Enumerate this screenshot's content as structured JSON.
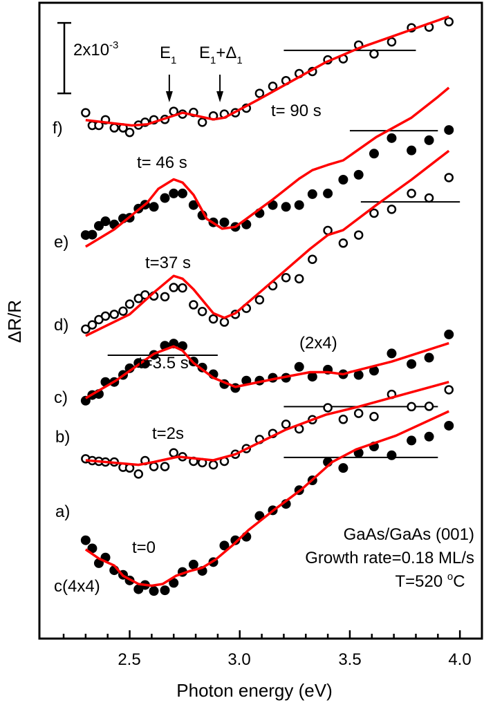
{
  "chart_data": {
    "type": "scatter",
    "xlabel": "Photon energy (eV)",
    "ylabel": "ΔR/R",
    "xlim": [
      2.09,
      4.1
    ],
    "ylim": [
      0,
      18.04
    ],
    "y_units_note": "",
    "xticks": [
      "2.5",
      "3.0",
      "3.5",
      "4.0"
    ],
    "xtick_values": [
      2.5,
      3.0,
      3.5,
      4.0
    ],
    "minor_tick_step": 0.1,
    "grid": false,
    "scale_bar": {
      "label_base": "2x10",
      "label_exp": "-3",
      "value": 2,
      "top": 17.47
    },
    "colors": {
      "fit": "#ff0000",
      "data": "#000000",
      "reference": "#000000"
    },
    "annotations": {
      "e1": {
        "base": "E",
        "sub": "1",
        "energy": 2.68
      },
      "e1_delta1": {
        "base1": "E",
        "sub1": "1",
        "plus": "+Δ",
        "sub2": "1",
        "energy": 2.91
      },
      "surface_2x4": "(2x4)",
      "surface_c4x4": "c(4x4)",
      "sample": "GaAs/GaAs (001)",
      "growth_rate": "Growth rate=0.18 ML/s",
      "temperature_base": "T=520 ",
      "temperature_deg": "o",
      "temperature_unit": "C"
    },
    "energies": [
      2.3,
      2.33,
      2.36,
      2.39,
      2.43,
      2.47,
      2.5,
      2.54,
      2.57,
      2.61,
      2.66,
      2.7,
      2.74,
      2.79,
      2.83,
      2.88,
      2.93,
      2.98,
      3.03,
      3.09,
      3.15,
      3.21,
      3.27,
      3.33,
      3.4,
      3.47,
      3.54,
      3.61,
      3.69,
      3.78,
      3.86,
      3.95
    ],
    "series": [
      {
        "label": "a)",
        "time": "t=0",
        "marker": "filled",
        "values": [
          2.79,
          2.56,
          2.14,
          2.3,
          1.94,
          1.81,
          1.65,
          1.4,
          1.52,
          1.35,
          1.37,
          1.58,
          1.89,
          2.1,
          1.92,
          2.17,
          2.64,
          2.79,
          2.89,
          3.48,
          3.64,
          3.82,
          4.21,
          4.49,
          5.01,
          4.84,
          5.27,
          5.45,
          5.2,
          5.62,
          5.73,
          6.04
        ],
        "fit": {
          "x": [
            2.3,
            2.36,
            2.43,
            2.47,
            2.54,
            2.6,
            2.65,
            2.71,
            2.77,
            2.83,
            2.89,
            2.97,
            3.04,
            3.16,
            3.28,
            3.42,
            3.53,
            3.71,
            3.95
          ],
          "y": [
            2.53,
            2.27,
            2.07,
            1.78,
            1.55,
            1.5,
            1.55,
            1.78,
            1.91,
            2.01,
            2.24,
            2.66,
            3.08,
            3.67,
            4.23,
            5.01,
            5.37,
            5.76,
            6.45
          ]
        },
        "reference": {
          "x": [
            3.2,
            3.9
          ],
          "y": 5.14
        }
      },
      {
        "label": "b)",
        "time": "t=2s",
        "marker": "open",
        "values": [
          5.1,
          5.05,
          5.03,
          5.01,
          5.01,
          4.86,
          4.84,
          4.67,
          5.05,
          4.88,
          4.88,
          5.27,
          5.16,
          5.03,
          4.99,
          4.93,
          5.03,
          5.23,
          5.39,
          5.65,
          5.82,
          6.08,
          5.95,
          6.21,
          6.55,
          6.22,
          6.39,
          6.3,
          6.93,
          6.58,
          6.59,
          7.06
        ],
        "fit": {
          "x": [
            2.3,
            2.54,
            2.61,
            2.72,
            2.88,
            2.98,
            3.21,
            3.39,
            3.54,
            3.95
          ],
          "y": [
            5.06,
            4.93,
            5.01,
            5.16,
            5.06,
            5.23,
            5.93,
            6.35,
            6.58,
            7.28
          ]
        },
        "reference": {
          "x": [
            3.2,
            3.9
          ],
          "y": 6.58
        }
      },
      {
        "label": "c)",
        "time": "t=3.5 s",
        "marker": "filled",
        "values": [
          6.75,
          6.91,
          6.94,
          7.28,
          7.28,
          7.48,
          7.67,
          7.82,
          7.8,
          8.05,
          8.31,
          8.37,
          8.3,
          7.86,
          7.69,
          7.5,
          7.22,
          7.11,
          7.32,
          7.32,
          7.4,
          7.4,
          7.71,
          7.43,
          7.63,
          7.5,
          7.48,
          7.6,
          8.09,
          7.79,
          7.97,
          8.63
        ],
        "fit": {
          "x": [
            2.3,
            2.44,
            2.61,
            2.7,
            2.74,
            2.79,
            2.88,
            2.98,
            3.16,
            3.32,
            3.4,
            3.47,
            3.5,
            3.69,
            3.95
          ],
          "y": [
            6.82,
            7.33,
            8.08,
            8.29,
            8.17,
            7.82,
            7.4,
            7.14,
            7.37,
            7.56,
            7.56,
            7.5,
            7.56,
            7.86,
            8.38
          ]
        },
        "reference": {
          "x": [
            2.4,
            2.9
          ],
          "y": 8.04
        }
      },
      {
        "label": "d)",
        "time": "t=37 s",
        "marker": "open",
        "values": [
          8.78,
          8.9,
          9.05,
          9.15,
          9.2,
          9.29,
          9.49,
          9.65,
          9.75,
          9.72,
          9.7,
          9.96,
          9.95,
          9.47,
          9.28,
          9.07,
          8.98,
          9.2,
          9.37,
          9.61,
          10.01,
          10.24,
          10.21,
          10.76,
          11.58,
          11.22,
          11.45,
          12.07,
          12.18,
          12.63,
          12.5,
          13.08
        ],
        "fit": {
          "x": [
            2.3,
            2.5,
            2.61,
            2.7,
            2.74,
            2.79,
            2.88,
            2.93,
            2.98,
            3.15,
            3.32,
            3.4,
            3.47,
            3.62,
            3.78,
            3.95
          ],
          "y": [
            8.59,
            9.2,
            9.82,
            10.29,
            10.21,
            9.91,
            9.23,
            9.1,
            9.23,
            10.14,
            11.06,
            11.45,
            11.59,
            12.3,
            13.02,
            13.84
          ]
        },
        "reference": {
          "x": [
            3.55,
            4.0
          ],
          "y": 12.39
        }
      },
      {
        "label": "e)",
        "time": "t= 46 s",
        "marker": "filled",
        "values": [
          11.45,
          11.46,
          11.71,
          11.84,
          11.75,
          11.92,
          11.94,
          12.2,
          12.31,
          12.25,
          12.5,
          12.63,
          12.63,
          12.3,
          12.01,
          11.81,
          11.81,
          11.68,
          11.75,
          12.07,
          12.3,
          12.25,
          12.3,
          12.61,
          12.63,
          13.02,
          13.16,
          13.76,
          14.2,
          13.85,
          14.14,
          14.43
        ],
        "fit": {
          "x": [
            2.3,
            2.43,
            2.58,
            2.63,
            2.7,
            2.74,
            2.79,
            2.85,
            2.92,
            2.98,
            3.15,
            3.27,
            3.33,
            3.4,
            3.47,
            3.62,
            3.78,
            3.9,
            3.95
          ],
          "y": [
            11.12,
            11.61,
            12.37,
            12.76,
            13.03,
            12.94,
            12.59,
            11.91,
            11.63,
            11.68,
            12.46,
            13.05,
            13.29,
            13.44,
            13.57,
            14.23,
            14.78,
            15.37,
            15.63
          ]
        },
        "reference": {
          "x": [
            3.5,
            3.9
          ],
          "y": 14.41
        }
      },
      {
        "label": "f)",
        "time": "t= 90 s",
        "marker": "open",
        "values": [
          14.92,
          14.56,
          14.56,
          14.72,
          14.49,
          14.49,
          14.36,
          14.57,
          14.65,
          14.72,
          14.73,
          14.96,
          14.88,
          14.93,
          14.65,
          14.83,
          14.88,
          14.92,
          15.05,
          15.47,
          15.67,
          15.83,
          16.03,
          16.09,
          16.42,
          16.45,
          16.84,
          16.59,
          16.93,
          17.33,
          17.35,
          17.5
        ],
        "fit": {
          "x": [
            2.3,
            2.51,
            2.58,
            2.74,
            2.88,
            2.93,
            3.09,
            3.39,
            3.54,
            3.95
          ],
          "y": [
            14.71,
            14.56,
            14.59,
            14.92,
            14.73,
            14.78,
            15.31,
            16.35,
            16.75,
            17.65
          ]
        },
        "reference": {
          "x": [
            3.2,
            3.8
          ],
          "y": 16.69
        }
      }
    ]
  }
}
